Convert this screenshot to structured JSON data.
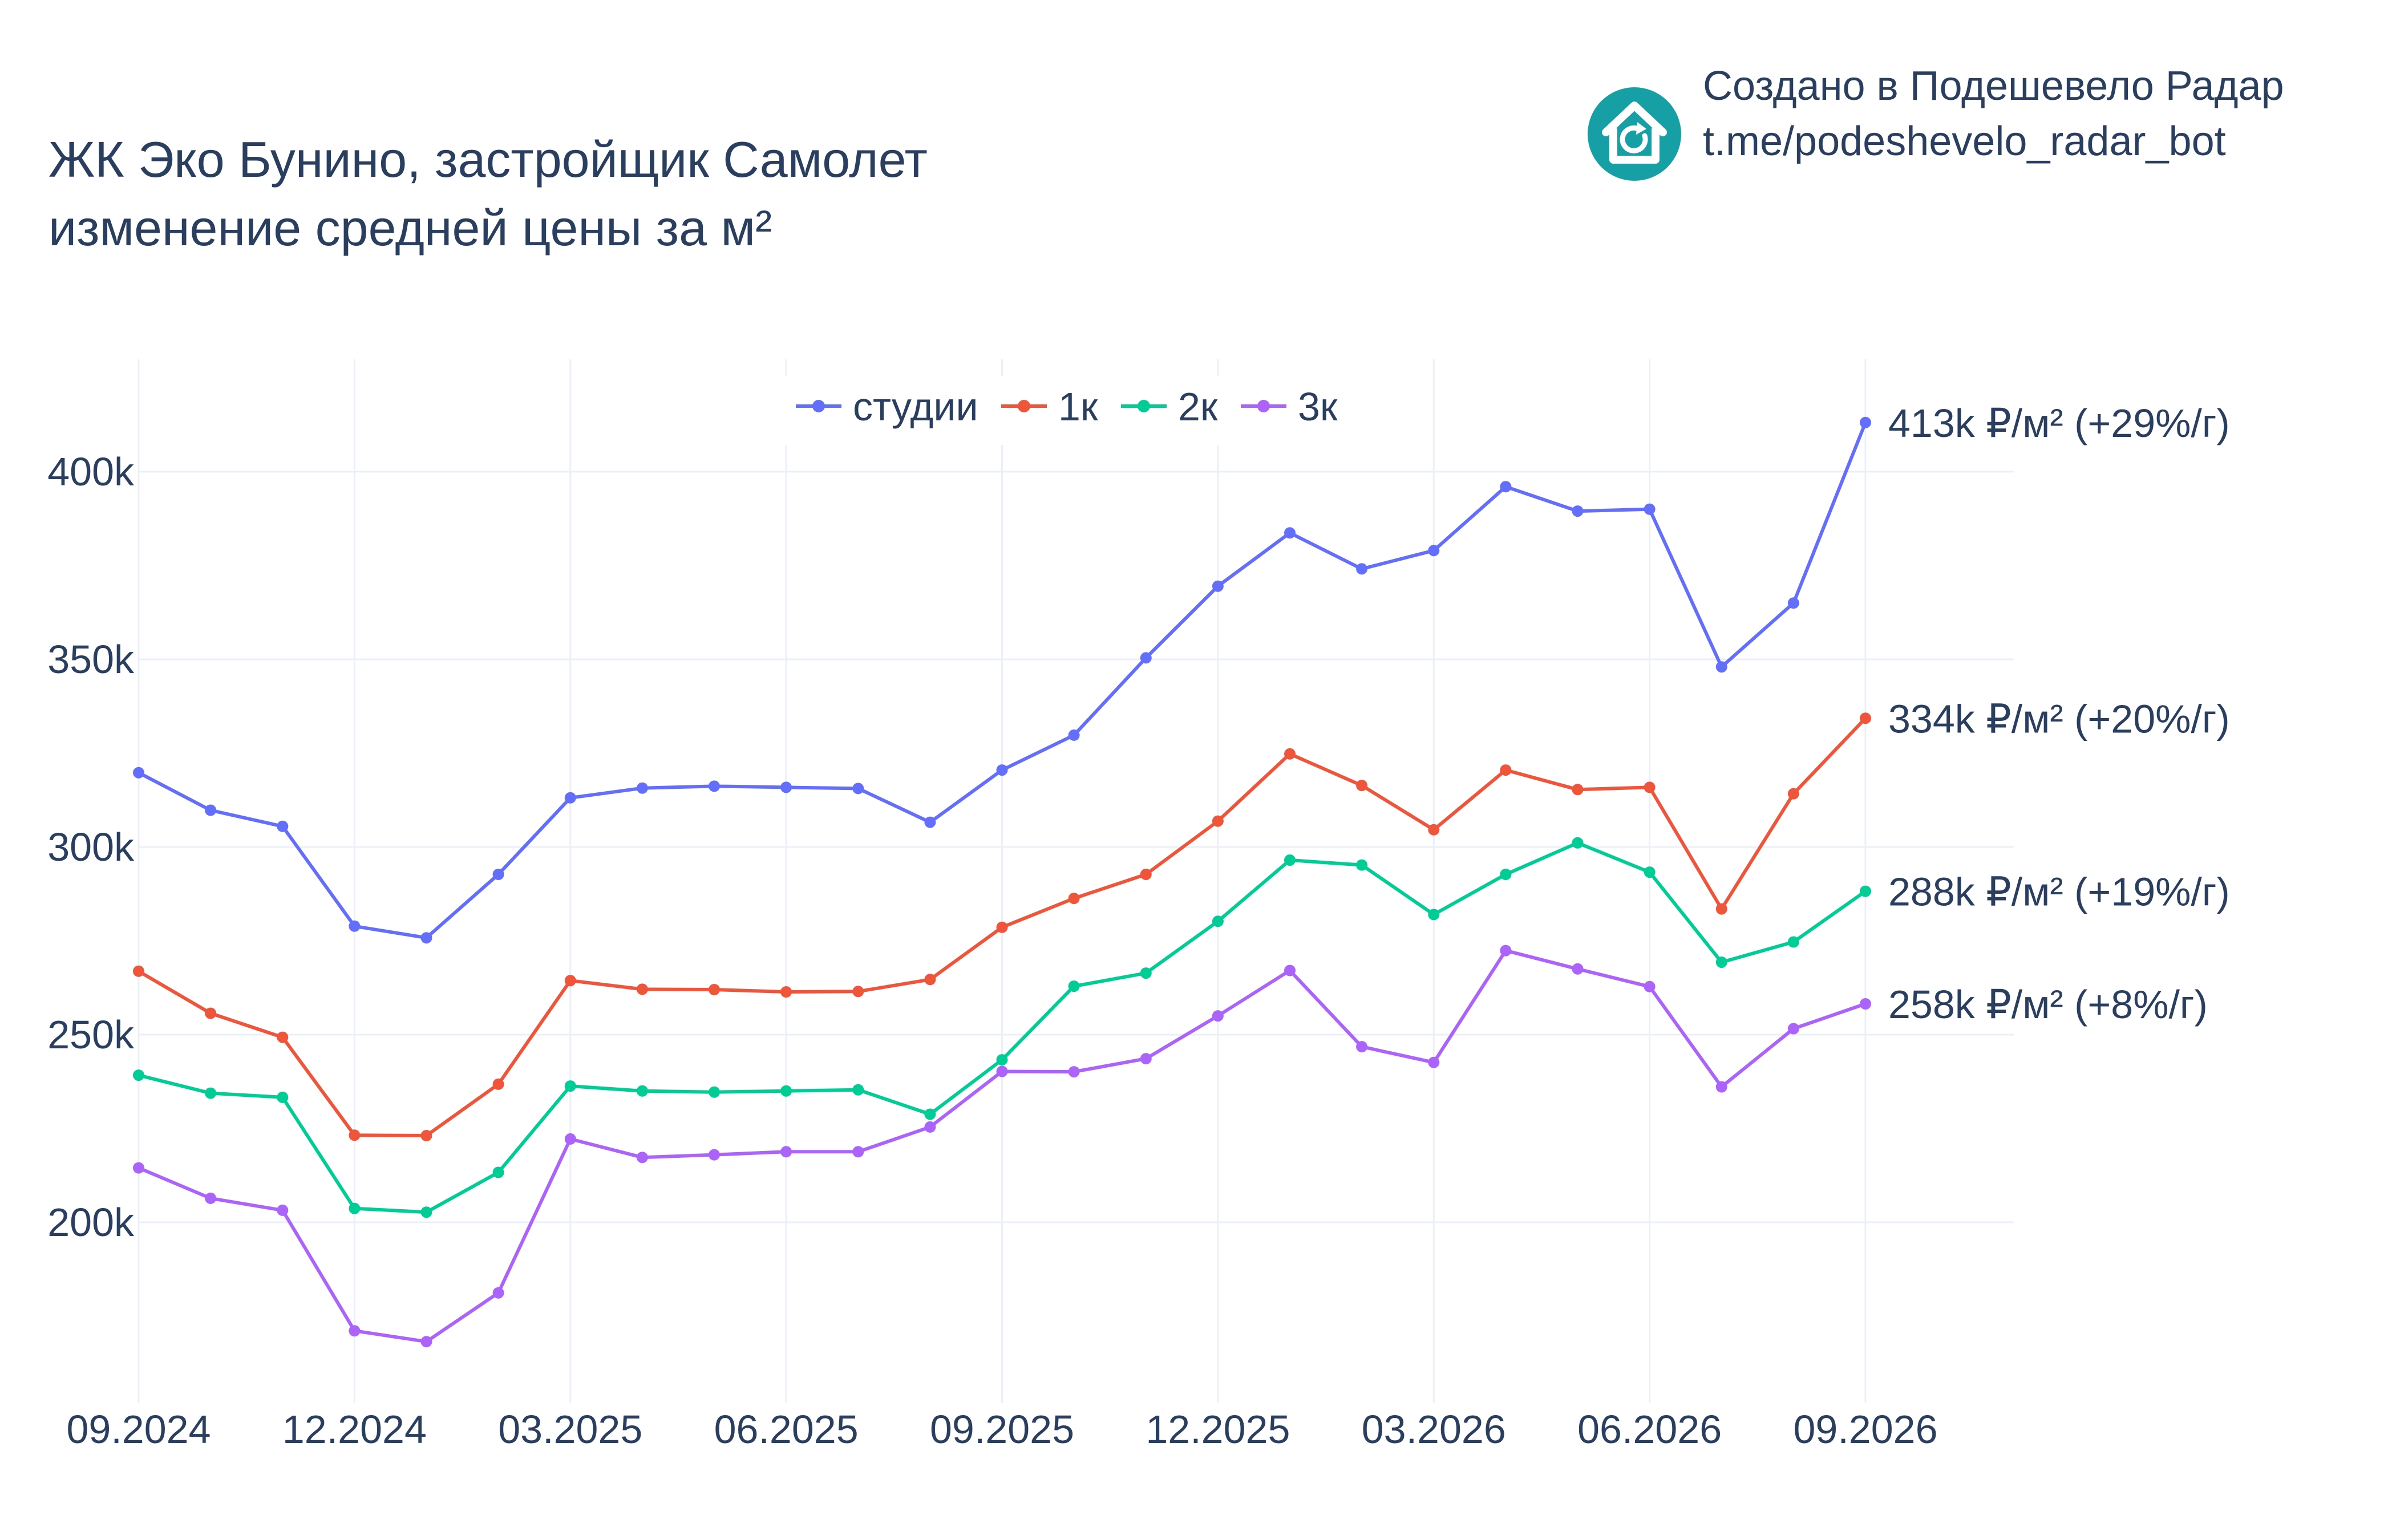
{
  "title": {
    "line1": "ЖК Эко Бунино, застройщик Самолет",
    "line2": "изменение средней цены за м²"
  },
  "branding": {
    "line1": "Создано в Подешевело Радар",
    "line2": "t.me/podeshevelo_radar_bot",
    "logo_icon": "house-refresh-icon",
    "logo_color": "#16a0a6"
  },
  "chart_data": {
    "type": "line",
    "x": [
      "2024-09",
      "2024-10",
      "2024-11",
      "2024-12",
      "2025-01",
      "2025-02",
      "2025-03",
      "2025-04",
      "2025-05",
      "2025-06",
      "2025-07",
      "2025-08",
      "2025-09",
      "2025-10",
      "2025-11",
      "2025-12",
      "2026-01",
      "2026-02",
      "2026-03",
      "2026-04",
      "2026-05",
      "2026-06",
      "2026-07",
      "2026-08",
      "2026-09"
    ],
    "x_ticks": [
      {
        "x": "2024-09",
        "label": "09.2024"
      },
      {
        "x": "2024-12",
        "label": "12.2024"
      },
      {
        "x": "2025-03",
        "label": "03.2025"
      },
      {
        "x": "2025-06",
        "label": "06.2025"
      },
      {
        "x": "2025-09",
        "label": "09.2025"
      },
      {
        "x": "2025-12",
        "label": "12.2025"
      },
      {
        "x": "2026-03",
        "label": "03.2026"
      },
      {
        "x": "2026-06",
        "label": "06.2026"
      },
      {
        "x": "2026-09",
        "label": "09.2026"
      }
    ],
    "y_ticks": [
      {
        "value": 200000,
        "label": "200k"
      },
      {
        "value": 250000,
        "label": "250k"
      },
      {
        "value": 300000,
        "label": "300k"
      },
      {
        "value": 350000,
        "label": "350k"
      },
      {
        "value": 400000,
        "label": "400k"
      }
    ],
    "ylim": [
      153000,
      430000
    ],
    "grid": true,
    "legend_position": "top-center",
    "series": [
      {
        "name": "студии",
        "color": "#636efa",
        "values": [
          319800,
          309800,
          305500,
          278900,
          275800,
          292700,
          313100,
          315700,
          316200,
          315900,
          315600,
          306600,
          320500,
          329800,
          350400,
          369500,
          383700,
          374100,
          379000,
          396000,
          389500,
          390000,
          348000,
          365000,
          413100
        ],
        "end_label": "413k ₽/м² (+29%/г)"
      },
      {
        "name": "1к",
        "color": "#ef553b",
        "values": [
          266900,
          255700,
          249300,
          223200,
          223100,
          236800,
          264400,
          262100,
          262000,
          261400,
          261500,
          264700,
          278600,
          286300,
          292700,
          306900,
          324800,
          316400,
          304600,
          320500,
          315300,
          315900,
          283500,
          314200,
          334300
        ],
        "end_label": "334k ₽/м² (+20%/г)"
      },
      {
        "name": "2к",
        "color": "#00cc96",
        "values": [
          239200,
          234400,
          233300,
          203700,
          202700,
          213300,
          236300,
          235000,
          234700,
          235000,
          235300,
          228800,
          243300,
          262900,
          266400,
          280200,
          296500,
          295200,
          282000,
          292700,
          301100,
          293300,
          269300,
          274700,
          288200
        ],
        "end_label": "288k ₽/м² (+19%/г)"
      },
      {
        "name": "3к",
        "color": "#ab63fa",
        "values": [
          214500,
          206400,
          203200,
          171100,
          168200,
          181200,
          222200,
          217300,
          218000,
          218800,
          218800,
          225400,
          240200,
          240100,
          243600,
          255000,
          267100,
          246800,
          242600,
          272400,
          267500,
          262800,
          236100,
          251600,
          258200
        ],
        "end_label": "258k ₽/м² (+8%/г)"
      }
    ]
  }
}
